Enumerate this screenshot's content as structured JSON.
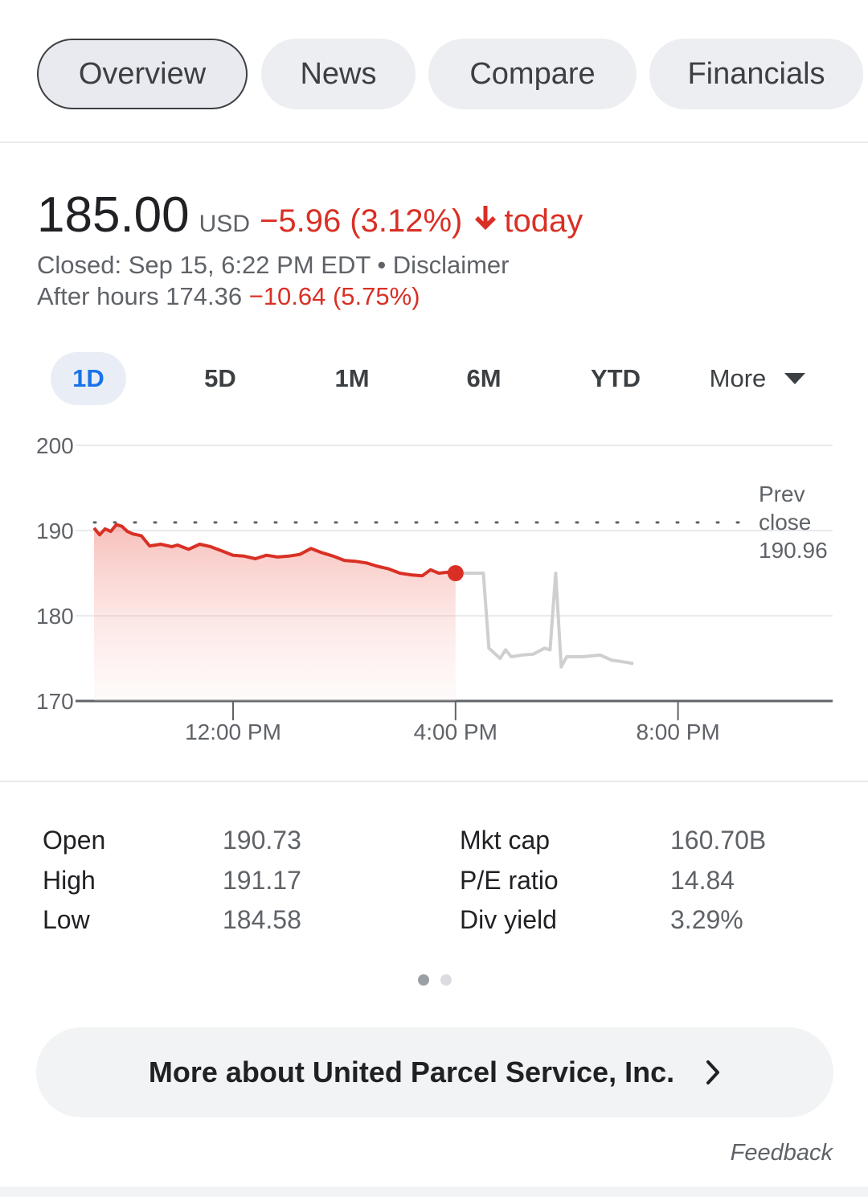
{
  "tabs": [
    {
      "label": "Overview"
    },
    {
      "label": "News"
    },
    {
      "label": "Compare"
    },
    {
      "label": "Financials"
    }
  ],
  "quote": {
    "price": "185.00",
    "currency": "USD",
    "change": "−5.96 (3.12%)",
    "today_label": "today",
    "closed_text": "Closed: Sep 15, 6:22 PM EDT",
    "separator": " • ",
    "disclaimer": "Disclaimer",
    "after_hours_label": "After hours 174.36",
    "after_hours_change": "−10.64 (5.75%)"
  },
  "ranges": [
    {
      "label": "1D"
    },
    {
      "label": "5D"
    },
    {
      "label": "1M"
    },
    {
      "label": "6M"
    },
    {
      "label": "YTD"
    },
    {
      "label": "More"
    }
  ],
  "colors": {
    "down": "#d93025",
    "after_hours_line": "#cfcfcf",
    "active_range": "#1a73e8"
  },
  "chart_data": {
    "type": "line",
    "ylim": [
      170,
      200
    ],
    "y_ticks": [
      "200",
      "190",
      "180",
      "170"
    ],
    "y_tick_values": [
      200,
      190,
      180,
      170
    ],
    "x_ticks": [
      "12:00 PM",
      "4:00 PM",
      "8:00 PM"
    ],
    "x_tick_values": [
      12,
      16,
      20
    ],
    "xlim": [
      9.5,
      22
    ],
    "prev_close": {
      "label_line1": "Prev",
      "label_line2": "close",
      "value_label": "190.96",
      "value": 190.96
    },
    "series": [
      {
        "values_x": [
          9.5,
          9.6,
          9.7,
          9.8,
          9.9,
          10.0,
          10.1,
          10.2,
          10.35,
          10.5,
          10.7,
          10.9,
          11.0,
          11.2,
          11.4,
          11.6,
          11.8,
          12.0,
          12.2,
          12.4,
          12.6,
          12.8,
          13.0,
          13.2,
          13.4,
          13.6,
          13.8,
          14.0,
          14.2,
          14.4,
          14.6,
          14.8,
          15.0,
          15.2,
          15.4,
          15.55,
          15.7,
          15.85,
          16.0
        ],
        "values_y": [
          190.3,
          189.5,
          190.2,
          189.9,
          190.7,
          190.5,
          189.9,
          189.6,
          189.4,
          188.2,
          188.4,
          188.1,
          188.3,
          187.8,
          188.4,
          188.1,
          187.6,
          187.1,
          187.0,
          186.7,
          187.1,
          186.9,
          187.0,
          187.2,
          187.9,
          187.4,
          187.0,
          186.5,
          186.4,
          186.2,
          185.8,
          185.5,
          185.0,
          184.8,
          184.7,
          185.4,
          185.0,
          185.1,
          185.0
        ]
      },
      {
        "values_x": [
          16.0,
          16.5,
          16.6,
          16.8,
          16.9,
          17.0,
          17.2,
          17.4,
          17.6,
          17.7,
          17.8,
          17.9,
          18.0,
          18.3,
          18.6,
          18.8,
          19.0,
          19.2
        ],
        "values_y": [
          185.0,
          185.0,
          176.2,
          175.0,
          176.0,
          175.2,
          175.4,
          175.5,
          176.2,
          176.0,
          185.0,
          174.0,
          175.2,
          175.2,
          175.4,
          174.8,
          174.6,
          174.4
        ]
      }
    ],
    "last_regular_point": {
      "x": 16.0,
      "y": 185.0
    },
    "grid": true
  },
  "stats": {
    "left": [
      {
        "label": "Open",
        "value": "190.73"
      },
      {
        "label": "High",
        "value": "191.17"
      },
      {
        "label": "Low",
        "value": "184.58"
      }
    ],
    "right": [
      {
        "label": "Mkt cap",
        "value": "160.70B"
      },
      {
        "label": "P/E ratio",
        "value": "14.84"
      },
      {
        "label": "Div yield",
        "value": "3.29%"
      }
    ]
  },
  "more_about": "More about United Parcel Service, Inc.",
  "feedback": "Feedback"
}
